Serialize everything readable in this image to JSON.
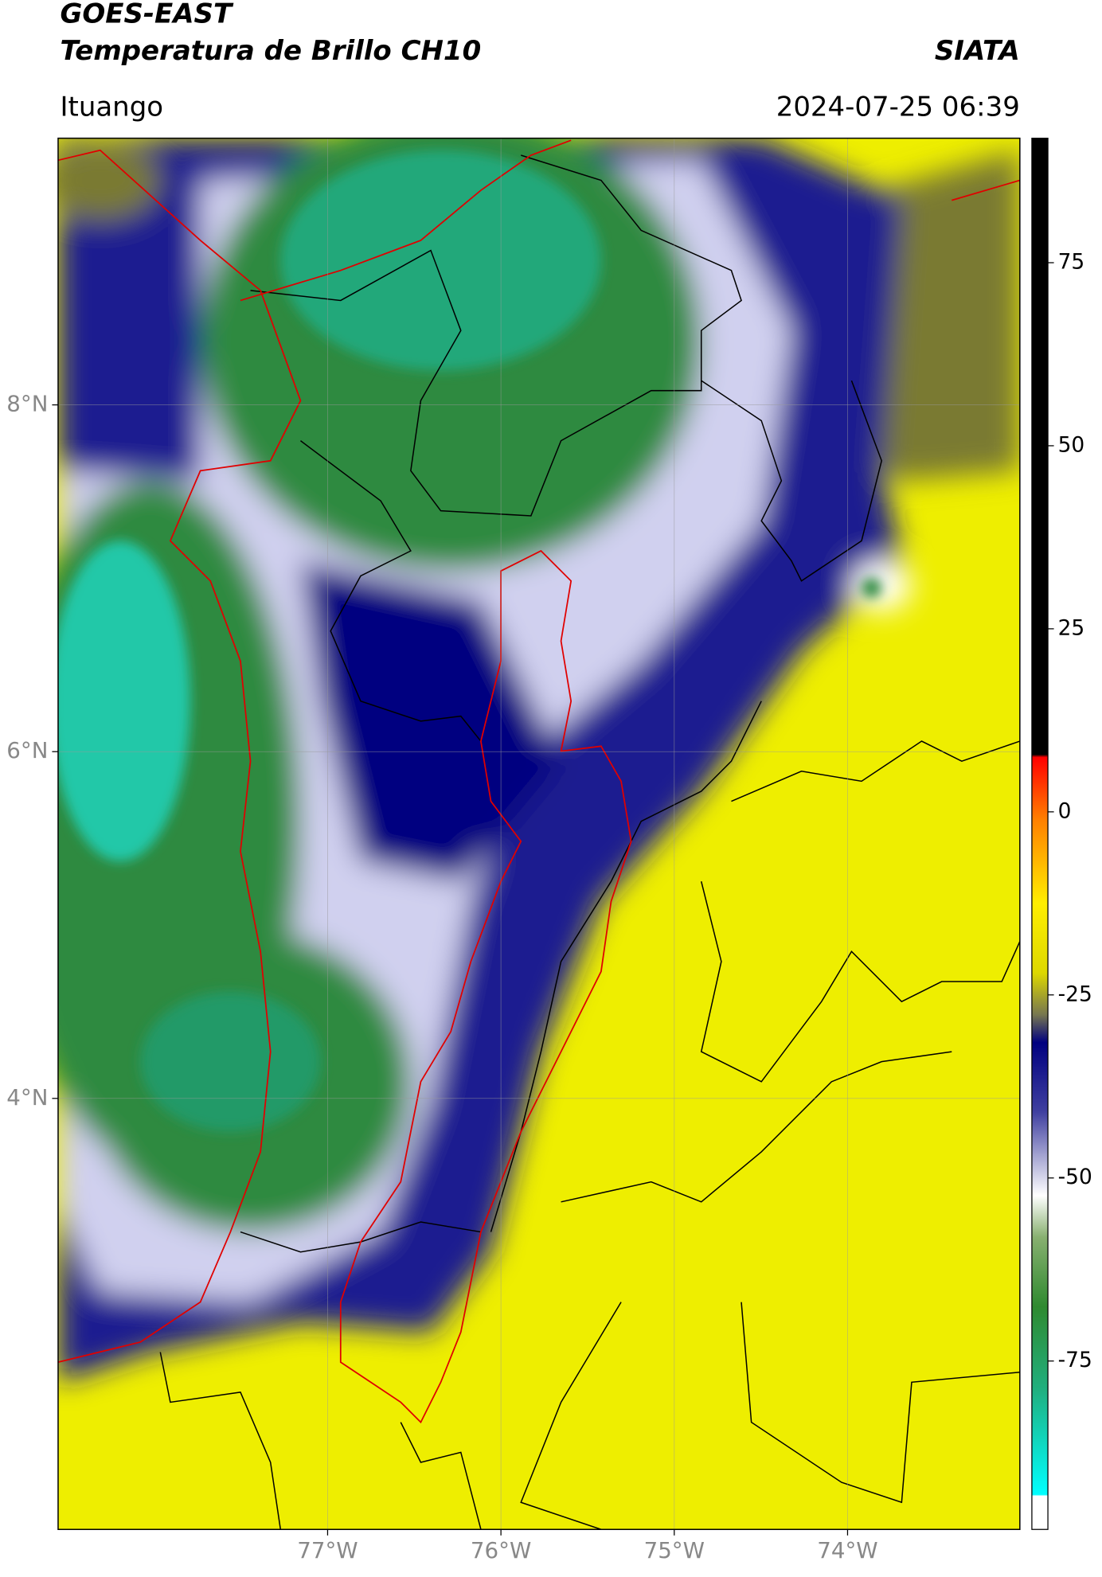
{
  "header": {
    "title": "GOES-EAST",
    "subtitle": "Temperatura de Brillo CH10",
    "source": "SIATA",
    "location": "Ituango",
    "timestamp": "2024-07-25 06:39"
  },
  "map": {
    "xlim": [
      -78.555,
      -73.006
    ],
    "ylim": [
      1.514,
      9.538
    ],
    "xticks": [
      {
        "value": -77,
        "label": "77°W"
      },
      {
        "value": -76,
        "label": "76°W"
      },
      {
        "value": -75,
        "label": "75°W"
      },
      {
        "value": -74,
        "label": "74°W"
      }
    ],
    "yticks": [
      {
        "value": 4,
        "label": "4°N"
      },
      {
        "value": 6,
        "label": "6°N"
      },
      {
        "value": 8,
        "label": "8°N"
      }
    ],
    "grid": true
  },
  "colorbar": {
    "lim": [
      -98,
      92
    ],
    "ticks": [
      -75,
      -50,
      -25,
      0,
      25,
      50,
      75
    ]
  }
}
